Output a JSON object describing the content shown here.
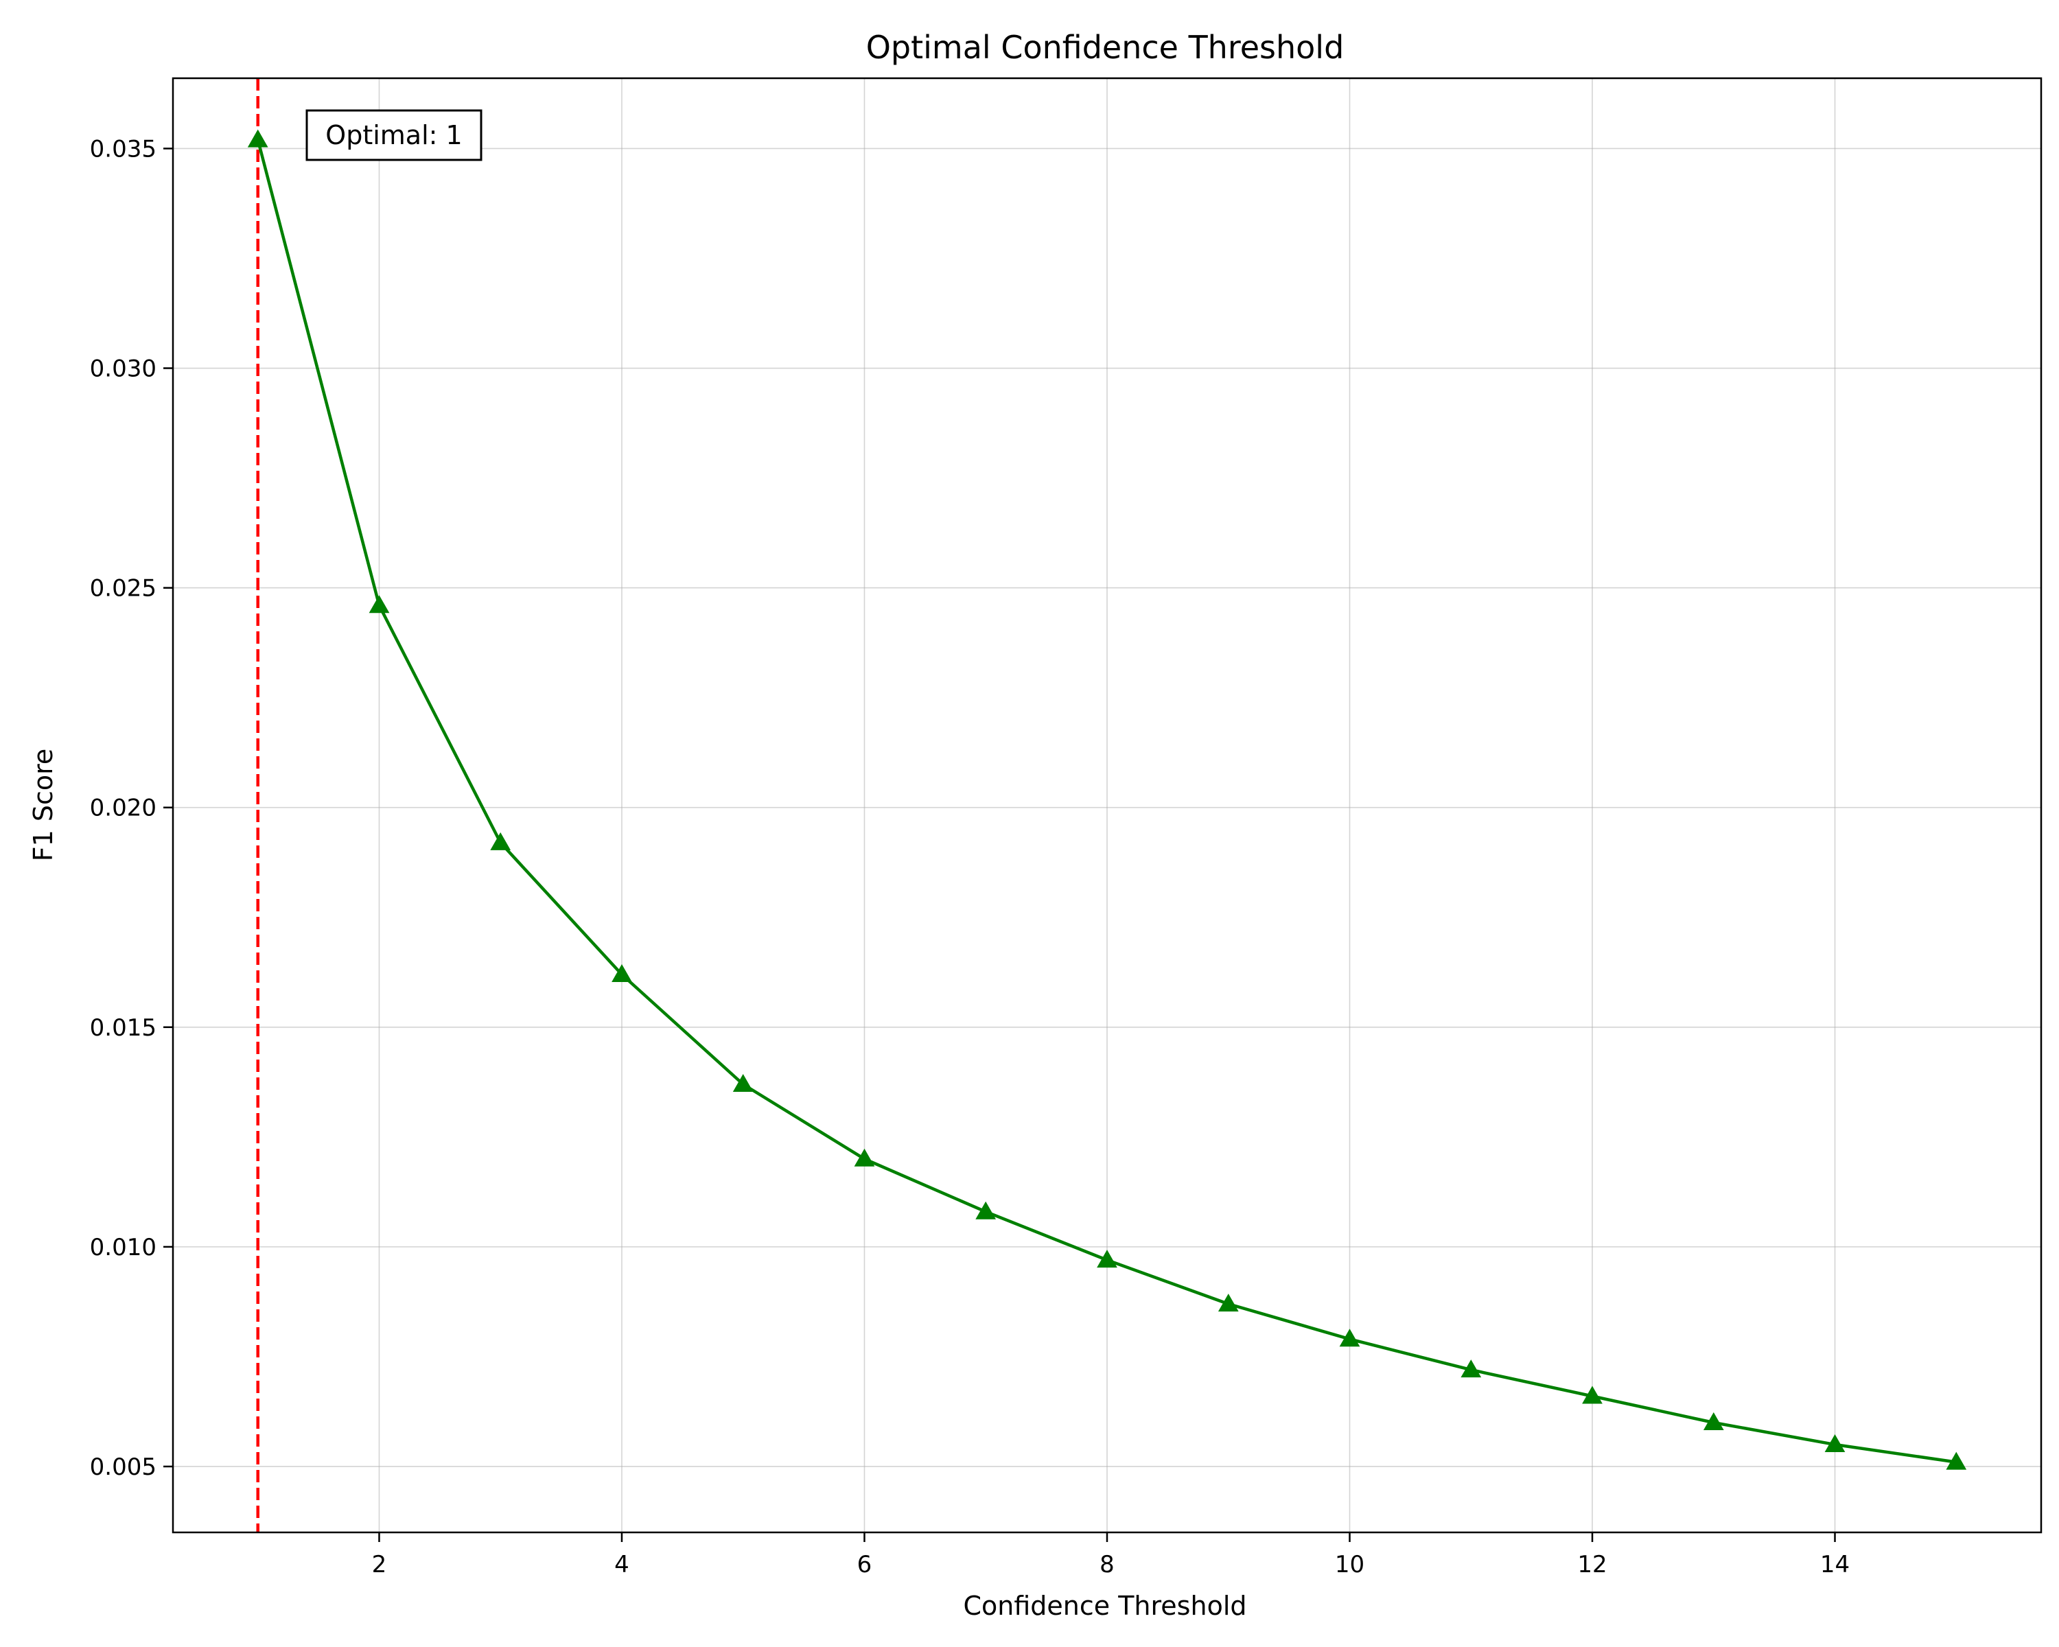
{
  "chart_data": {
    "type": "line",
    "title": "Optimal Confidence Threshold",
    "xlabel": "Confidence Threshold",
    "ylabel": "F1 Score",
    "xlim": [
      0.3,
      15.7
    ],
    "ylim": [
      0.0035,
      0.0366
    ],
    "x_ticks": [
      2,
      4,
      6,
      8,
      10,
      12,
      14
    ],
    "x_tick_labels": [
      "2",
      "4",
      "6",
      "8",
      "10",
      "12",
      "14"
    ],
    "y_ticks": [
      0.005,
      0.01,
      0.015,
      0.02,
      0.025,
      0.03,
      0.035
    ],
    "y_tick_labels": [
      "0.005",
      "0.010",
      "0.015",
      "0.020",
      "0.025",
      "0.030",
      "0.035"
    ],
    "grid": true,
    "series": [
      {
        "color": "#008000",
        "marker": "triangle",
        "x": [
          1,
          2,
          3,
          4,
          5,
          6,
          7,
          8,
          9,
          10,
          11,
          12,
          13,
          14,
          15
        ],
        "y": [
          0.0352,
          0.0246,
          0.0192,
          0.0162,
          0.0137,
          0.012,
          0.0108,
          0.0097,
          0.0087,
          0.0079,
          0.0072,
          0.0066,
          0.006,
          0.0055,
          0.0051
        ]
      }
    ],
    "reference_line": {
      "orientation": "vertical",
      "x": 1,
      "color": "#ff0000",
      "style": "dashed"
    },
    "annotation": {
      "text": "Optimal: 1",
      "placement": "top-left"
    }
  }
}
